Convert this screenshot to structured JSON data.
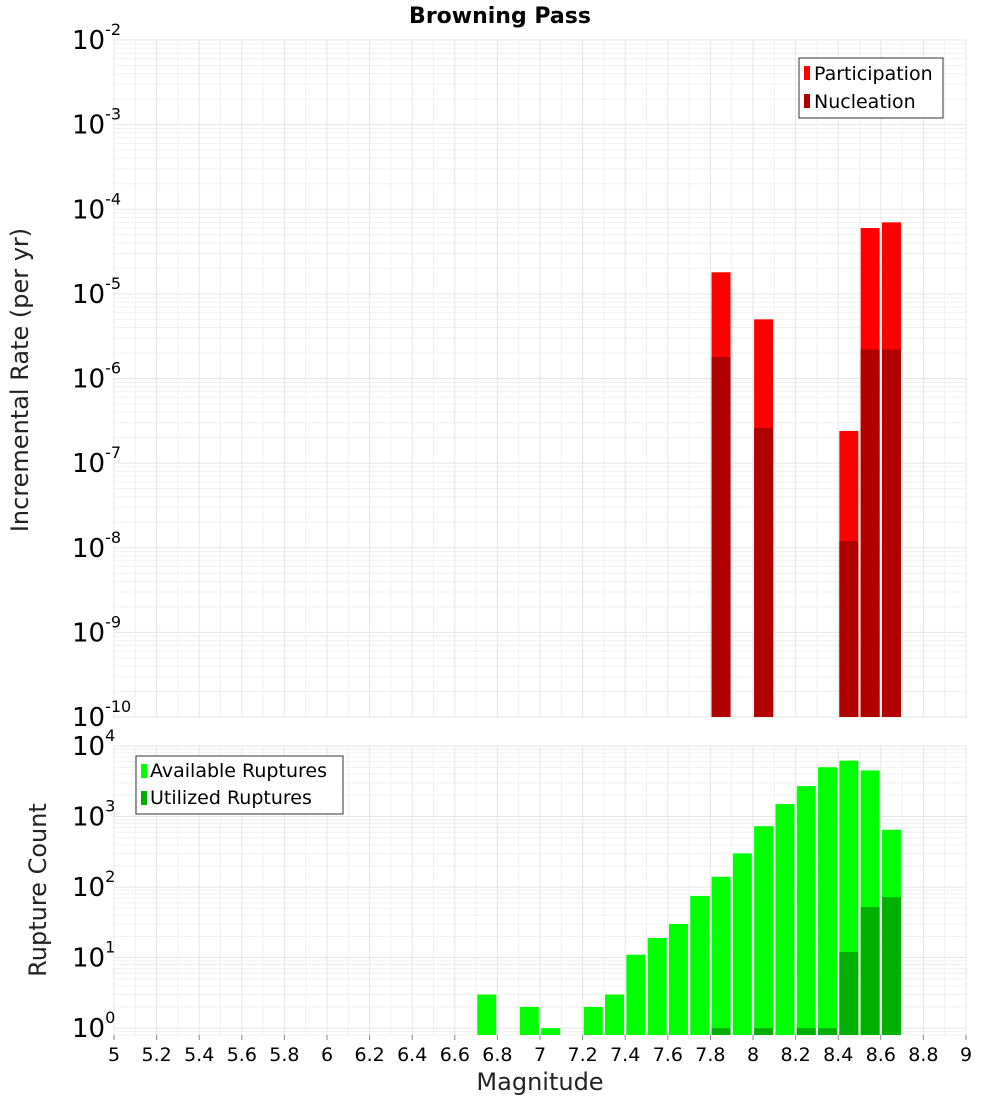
{
  "chart_data": [
    {
      "type": "bar",
      "title": "Browning Pass",
      "ylabel": "Incremental Rate (per yr)",
      "xlabel": "",
      "xlim": [
        5,
        9
      ],
      "ylim": [
        1e-10,
        0.01
      ],
      "yscale": "log",
      "grid": true,
      "legend_position": "top-right",
      "series": [
        {
          "name": "Participation",
          "color": "#ff0000",
          "x": [
            7.85,
            8.05,
            8.45,
            8.55,
            8.65
          ],
          "values": [
            1.8e-05,
            5e-06,
            2.4e-07,
            6e-05,
            7e-05
          ]
        },
        {
          "name": "Nucleation",
          "color": "#b00000",
          "x": [
            7.85,
            8.05,
            8.45,
            8.55,
            8.65
          ],
          "values": [
            1.8e-06,
            2.6e-07,
            1.2e-08,
            2.2e-06,
            2.2e-06
          ]
        }
      ]
    },
    {
      "type": "bar",
      "title": "",
      "ylabel": "Rupture Count",
      "xlabel": "Magnitude",
      "xlim": [
        5,
        9
      ],
      "ylim": [
        0.8,
        10000
      ],
      "yscale": "log",
      "grid": true,
      "legend_position": "top-left",
      "x_ticks": [
        "5",
        "5.2",
        "5.4",
        "5.6",
        "5.8",
        "6",
        "6.2",
        "6.4",
        "6.6",
        "6.8",
        "7",
        "7.2",
        "7.4",
        "7.6",
        "7.8",
        "8",
        "8.2",
        "8.4",
        "8.6",
        "8.8",
        "9"
      ],
      "series": [
        {
          "name": "Available Ruptures",
          "color": "#00ff00",
          "x": [
            6.75,
            6.95,
            7.05,
            7.25,
            7.35,
            7.45,
            7.55,
            7.65,
            7.75,
            7.85,
            7.95,
            8.05,
            8.15,
            8.25,
            8.35,
            8.45,
            8.55,
            8.65
          ],
          "values": [
            3,
            2,
            1,
            2,
            3,
            11,
            19,
            30,
            75,
            140,
            300,
            730,
            1500,
            2700,
            5000,
            6200,
            4500,
            650
          ]
        },
        {
          "name": "Utilized Ruptures",
          "color": "#00b000",
          "x": [
            7.85,
            8.05,
            8.25,
            8.35,
            8.45,
            8.55,
            8.65
          ],
          "values": [
            1,
            1,
            1,
            1,
            12,
            52,
            72
          ]
        }
      ]
    }
  ],
  "y_tick_labels": {
    "top": [
      {
        "base": "10",
        "exp": "-10"
      },
      {
        "base": "10",
        "exp": "-9"
      },
      {
        "base": "10",
        "exp": "-8"
      },
      {
        "base": "10",
        "exp": "-7"
      },
      {
        "base": "10",
        "exp": "-6"
      },
      {
        "base": "10",
        "exp": "-5"
      },
      {
        "base": "10",
        "exp": "-4"
      },
      {
        "base": "10",
        "exp": "-3"
      },
      {
        "base": "10",
        "exp": "-2"
      }
    ],
    "bottom": [
      {
        "base": "10",
        "exp": "0"
      },
      {
        "base": "10",
        "exp": "1"
      },
      {
        "base": "10",
        "exp": "2"
      },
      {
        "base": "10",
        "exp": "3"
      },
      {
        "base": "10",
        "exp": "4"
      }
    ]
  }
}
